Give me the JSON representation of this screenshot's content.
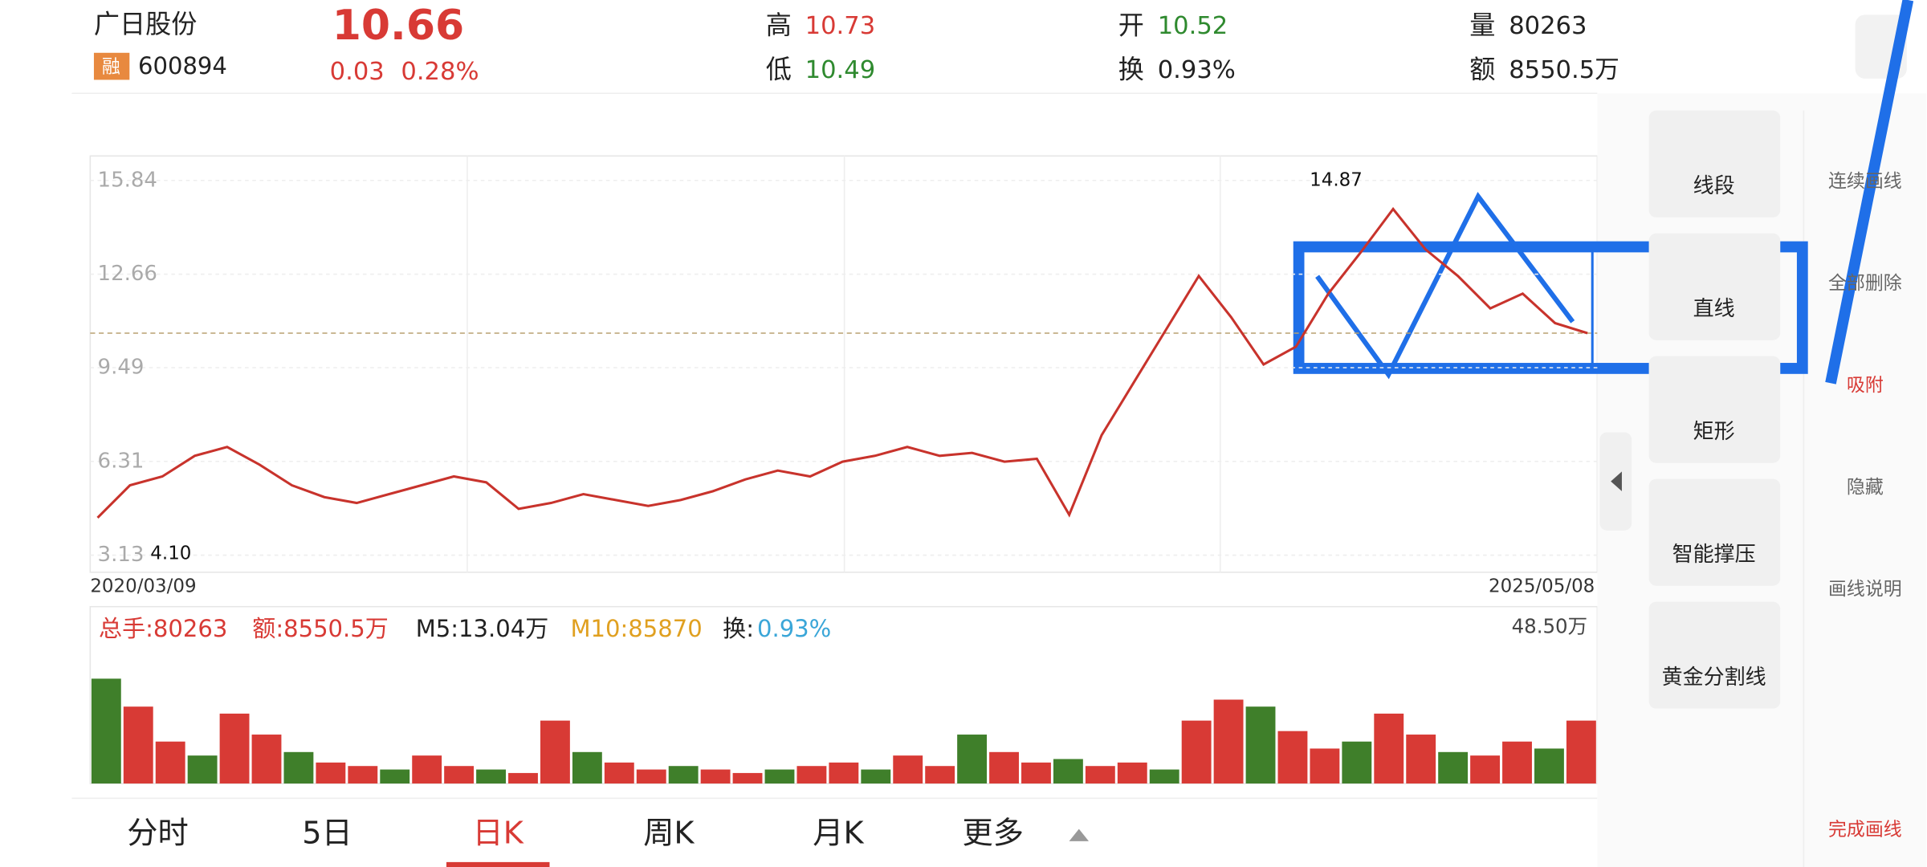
{
  "header": {
    "name": "广日股份",
    "tag": "融",
    "code": "600894",
    "price": "10.66",
    "change": "0.03",
    "pct": "0.28%",
    "high_label": "高",
    "high": "10.73",
    "low_label": "低",
    "low": "10.49",
    "open_label": "开",
    "open": "10.52",
    "turn_label": "换",
    "turn": "0.93%",
    "vol_label": "量",
    "vol": "80263",
    "amt_label": "额",
    "amt": "8550.5万"
  },
  "chart_data": {
    "type": "line",
    "color": "#c8332c",
    "ylim": [
      2.55,
      16.67
    ],
    "yticks": [
      15.84,
      12.66,
      9.49,
      6.31,
      {
        "value": 3.13,
        "label": "3.13"
      }
    ],
    "ref_line": 10.66,
    "annotations": {
      "max": "14.87",
      "min": "4.10"
    },
    "x_start": "2020/03/09",
    "x_end": "2025/05/08",
    "values": [
      4.4,
      5.5,
      5.8,
      6.5,
      6.8,
      6.2,
      5.5,
      5.1,
      4.9,
      5.2,
      5.5,
      5.8,
      5.6,
      4.7,
      4.9,
      5.2,
      5.0,
      4.8,
      5.0,
      5.3,
      5.7,
      6.0,
      5.8,
      6.3,
      6.5,
      6.8,
      6.5,
      6.6,
      6.3,
      6.4,
      4.5,
      7.2,
      9.0,
      10.8,
      12.6,
      11.2,
      9.6,
      10.2,
      12.0,
      13.4,
      14.87,
      13.5,
      12.6,
      11.5,
      12.0,
      11.0,
      10.66
    ],
    "volume": {
      "legend": {
        "total": "总手:80263",
        "amt": "额:8550.5万",
        "m5": "M5:13.04万",
        "m10": "M10:85870",
        "turn_label": "换:",
        "turn": "0.93%"
      },
      "ylim": [
        0,
        48.5
      ],
      "top_label": "48.50万",
      "values": [
        30,
        22,
        12,
        8,
        20,
        14,
        9,
        6,
        5,
        4,
        8,
        5,
        4,
        3,
        18,
        9,
        6,
        4,
        5,
        4,
        3,
        4,
        5,
        6,
        4,
        8,
        5,
        14,
        9,
        6,
        7,
        5,
        6,
        4,
        18,
        24,
        22,
        15,
        10,
        12,
        20,
        14,
        9,
        8,
        12,
        10,
        18
      ]
    }
  },
  "tools": [
    "线段",
    "直线",
    "矩形",
    "智能撑压",
    "黄金分割线"
  ],
  "side": [
    "连续画线",
    "全部删除",
    "吸附",
    "隐藏",
    "画线说明",
    "完成画线"
  ],
  "tabs": [
    "分时",
    "5日",
    "日K",
    "周K",
    "月K",
    "更多"
  ]
}
